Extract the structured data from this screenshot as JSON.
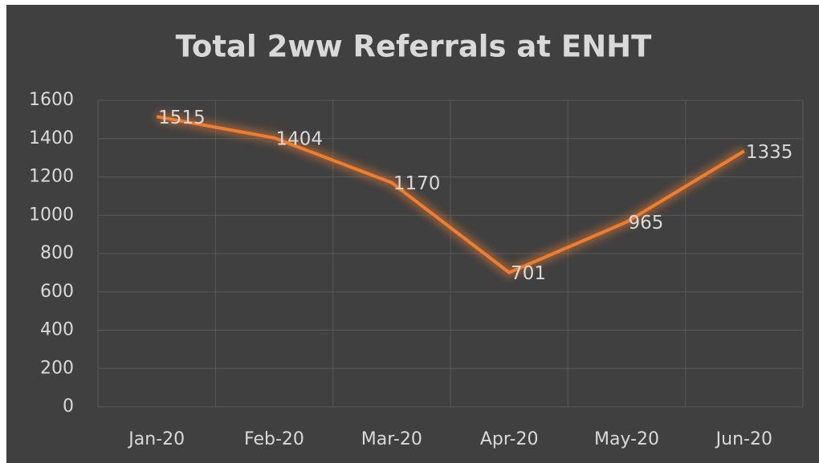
{
  "chart_data": {
    "type": "line",
    "title": "Total 2ww Referrals at ENHT",
    "categories": [
      "Jan-20",
      "Feb-20",
      "Mar-20",
      "Apr-20",
      "May-20",
      "Jun-20"
    ],
    "values": [
      1515,
      1404,
      1170,
      701,
      965,
      1335
    ],
    "color": "#ed7d31",
    "ylim": [
      0,
      1600
    ],
    "yticks": [
      0,
      200,
      400,
      600,
      800,
      1000,
      1200,
      1400,
      1600
    ],
    "grid": true
  }
}
